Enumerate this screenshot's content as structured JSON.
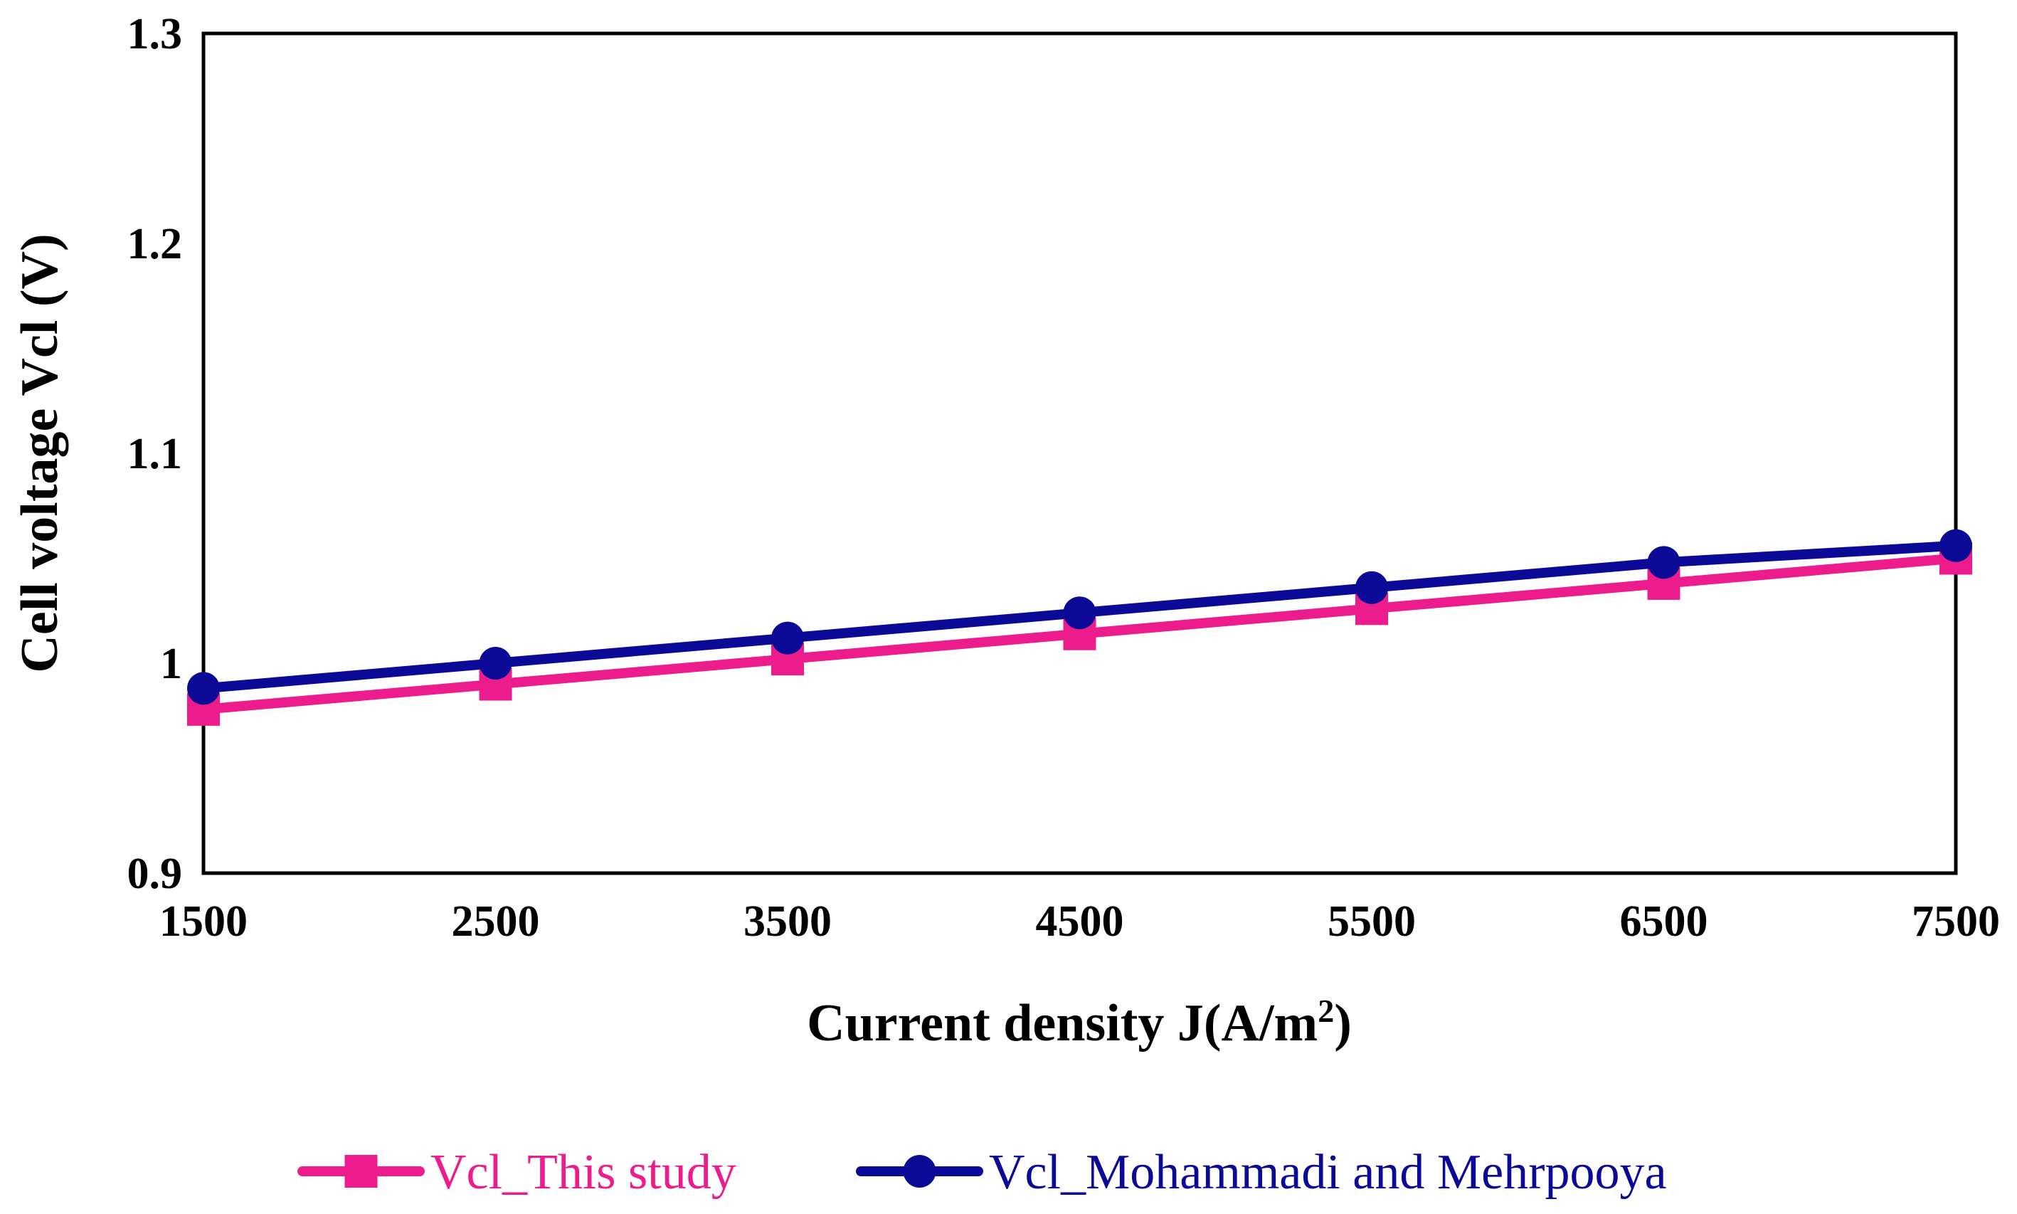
{
  "chart_data": {
    "type": "line",
    "title": "",
    "xlabel": "Current density J(A/m",
    "xlabel_superscript": "2",
    "xlabel_suffix": ")",
    "ylabel": "Cell voltage Vcl (V)",
    "x": [
      1500,
      2500,
      3500,
      4500,
      5500,
      6500,
      7500
    ],
    "xlim": [
      1500,
      7500
    ],
    "ylim": [
      0.9,
      1.3
    ],
    "x_ticks": [
      "1500",
      "2500",
      "3500",
      "4500",
      "5500",
      "6500",
      "7500"
    ],
    "y_ticks": [
      "0.9",
      "1",
      "1.1",
      "1.2",
      "1.3"
    ],
    "y_tick_values": [
      0.9,
      1.0,
      1.1,
      1.2,
      1.3
    ],
    "grid": false,
    "legend_position": "bottom",
    "series": [
      {
        "name": "Vcl_This study",
        "marker": "square",
        "color": "#EC1C8C",
        "values": [
          0.978,
          0.99,
          1.002,
          1.014,
          1.026,
          1.038,
          1.05
        ]
      },
      {
        "name": "Vcl_Mohammadi and Mehrpooya",
        "marker": "circle",
        "color": "#0A0A96",
        "values": [
          0.988,
          1.0,
          1.012,
          1.024,
          1.036,
          1.048,
          1.056
        ]
      }
    ]
  }
}
